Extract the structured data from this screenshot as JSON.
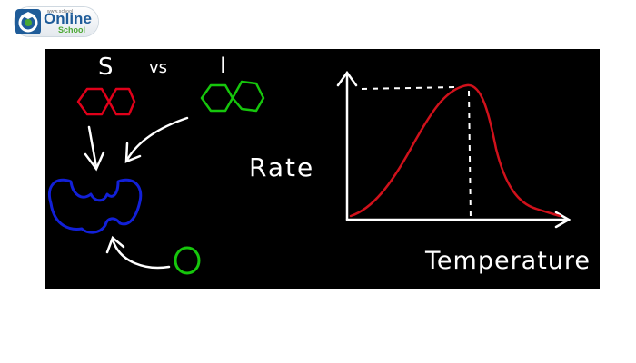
{
  "logo": {
    "small_text": "www.school",
    "name": "Online",
    "sub": "School"
  },
  "diagram": {
    "substrate_label": "S",
    "vs_label": "vs",
    "inhibitor_label": "I",
    "y_axis_label": "Rate",
    "x_axis_label": "Temperature"
  },
  "colors": {
    "substrate": "#e0001a",
    "inhibitor": "#16c60c",
    "enzyme": "#1220d8",
    "curve": "#d0111b",
    "chalk": "#ffffff",
    "board": "#000000"
  }
}
